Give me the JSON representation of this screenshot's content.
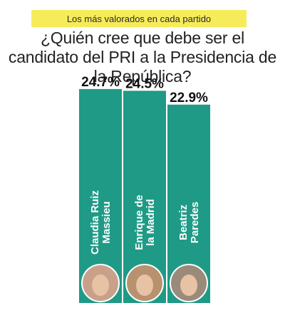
{
  "banner": "Los más valorados en cada partido",
  "title": "¿Quién cree que debe ser el candidato del PRI a la Presidencia de la República?",
  "colors": {
    "bar": "#1f9a86",
    "banner": "#f6ec5a",
    "text": "#222222"
  },
  "chart_data": {
    "type": "bar",
    "title": "¿Quién cree que debe ser el candidato del PRI a la Presidencia de la República?",
    "categories": [
      "Claudia Ruiz Massieu",
      "Enrique de la Madrid",
      "Beatriz Paredes"
    ],
    "category_lines": [
      [
        "Claudia Ruiz",
        "Massieu"
      ],
      [
        "Enrique de",
        "la Madrid"
      ],
      [
        "Beatriz",
        "Paredes"
      ]
    ],
    "values": [
      24.7,
      24.5,
      22.9
    ],
    "labels": [
      "24.7%",
      "24.5%",
      "22.9%"
    ],
    "unit": "%"
  }
}
